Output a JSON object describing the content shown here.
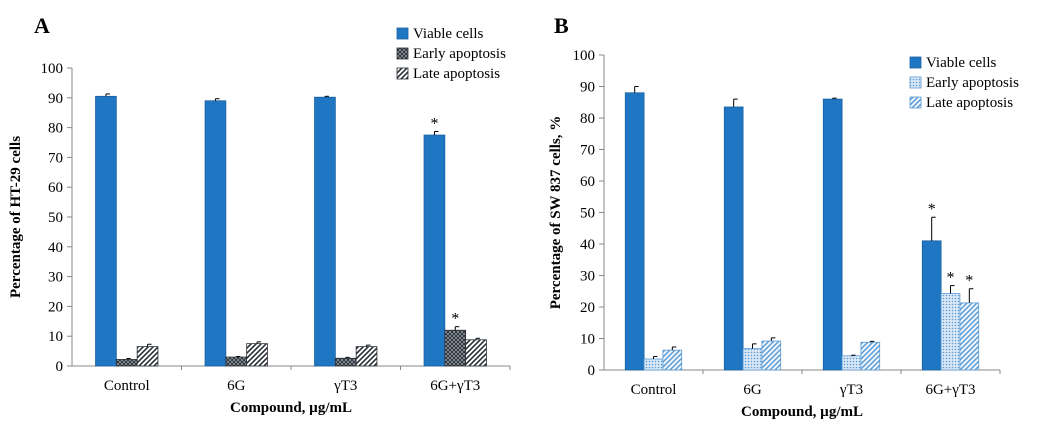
{
  "panels": {
    "A": {
      "label": "A"
    },
    "B": {
      "label": "B"
    }
  },
  "colors": {
    "viable": "#1F77C4",
    "early_dark": "#3a3f45",
    "late_dark": "#3a3f45",
    "early_light": "#6fa6d6",
    "late_light": "#6fa6d6"
  },
  "chart_data": [
    {
      "type": "bar",
      "panel": "A",
      "categories": [
        "Control",
        "6G",
        "γT3",
        "6G+γT3"
      ],
      "xlabel": "Compound, µg/mL",
      "ylabel": "Percentage of HT-29 cells",
      "ylim": [
        0,
        100
      ],
      "yticks": [
        0,
        10,
        20,
        30,
        40,
        50,
        60,
        70,
        80,
        90,
        100
      ],
      "legend_position": "top-right",
      "series": [
        {
          "name": "Viable cells",
          "values": [
            90.5,
            89,
            90.2,
            77.5
          ],
          "errors": [
            0.8,
            0.7,
            0.3,
            1.2
          ],
          "significant": [
            false,
            false,
            false,
            true
          ]
        },
        {
          "name": "Early apoptosis",
          "values": [
            2.2,
            3,
            2.6,
            12
          ],
          "errors": [
            0.3,
            0.2,
            0.3,
            1.2
          ],
          "significant": [
            false,
            false,
            false,
            true
          ]
        },
        {
          "name": "Late apoptosis",
          "values": [
            6.5,
            7.5,
            6.5,
            8.8
          ],
          "errors": [
            0.8,
            0.6,
            0.5,
            0.5
          ],
          "significant": [
            false,
            false,
            false,
            false
          ]
        }
      ],
      "significance_marker": "*"
    },
    {
      "type": "bar",
      "panel": "B",
      "categories": [
        "Control",
        "6G",
        "γT3",
        "6G+γT3"
      ],
      "xlabel": "Compound, µg/mL",
      "ylabel": "Percentage of SW 837 cells, %",
      "ylim": [
        0,
        100
      ],
      "yticks": [
        0,
        10,
        20,
        30,
        40,
        50,
        60,
        70,
        80,
        90,
        100
      ],
      "legend_position": "top-right",
      "series": [
        {
          "name": "Viable cells",
          "values": [
            88,
            83.5,
            86,
            41
          ],
          "errors": [
            2,
            2.5,
            0.3,
            7.5
          ],
          "significant": [
            false,
            false,
            false,
            true
          ]
        },
        {
          "name": "Early apoptosis",
          "values": [
            3.5,
            6.8,
            4.5,
            24.3
          ],
          "errors": [
            0.8,
            1.5,
            0.2,
            2.5
          ],
          "significant": [
            false,
            false,
            false,
            true
          ]
        },
        {
          "name": "Late apoptosis",
          "values": [
            6.3,
            9.2,
            8.8,
            21.3
          ],
          "errors": [
            1,
            1,
            0.3,
            4.5
          ],
          "significant": [
            false,
            false,
            false,
            true
          ]
        }
      ],
      "significance_marker": "*"
    }
  ]
}
